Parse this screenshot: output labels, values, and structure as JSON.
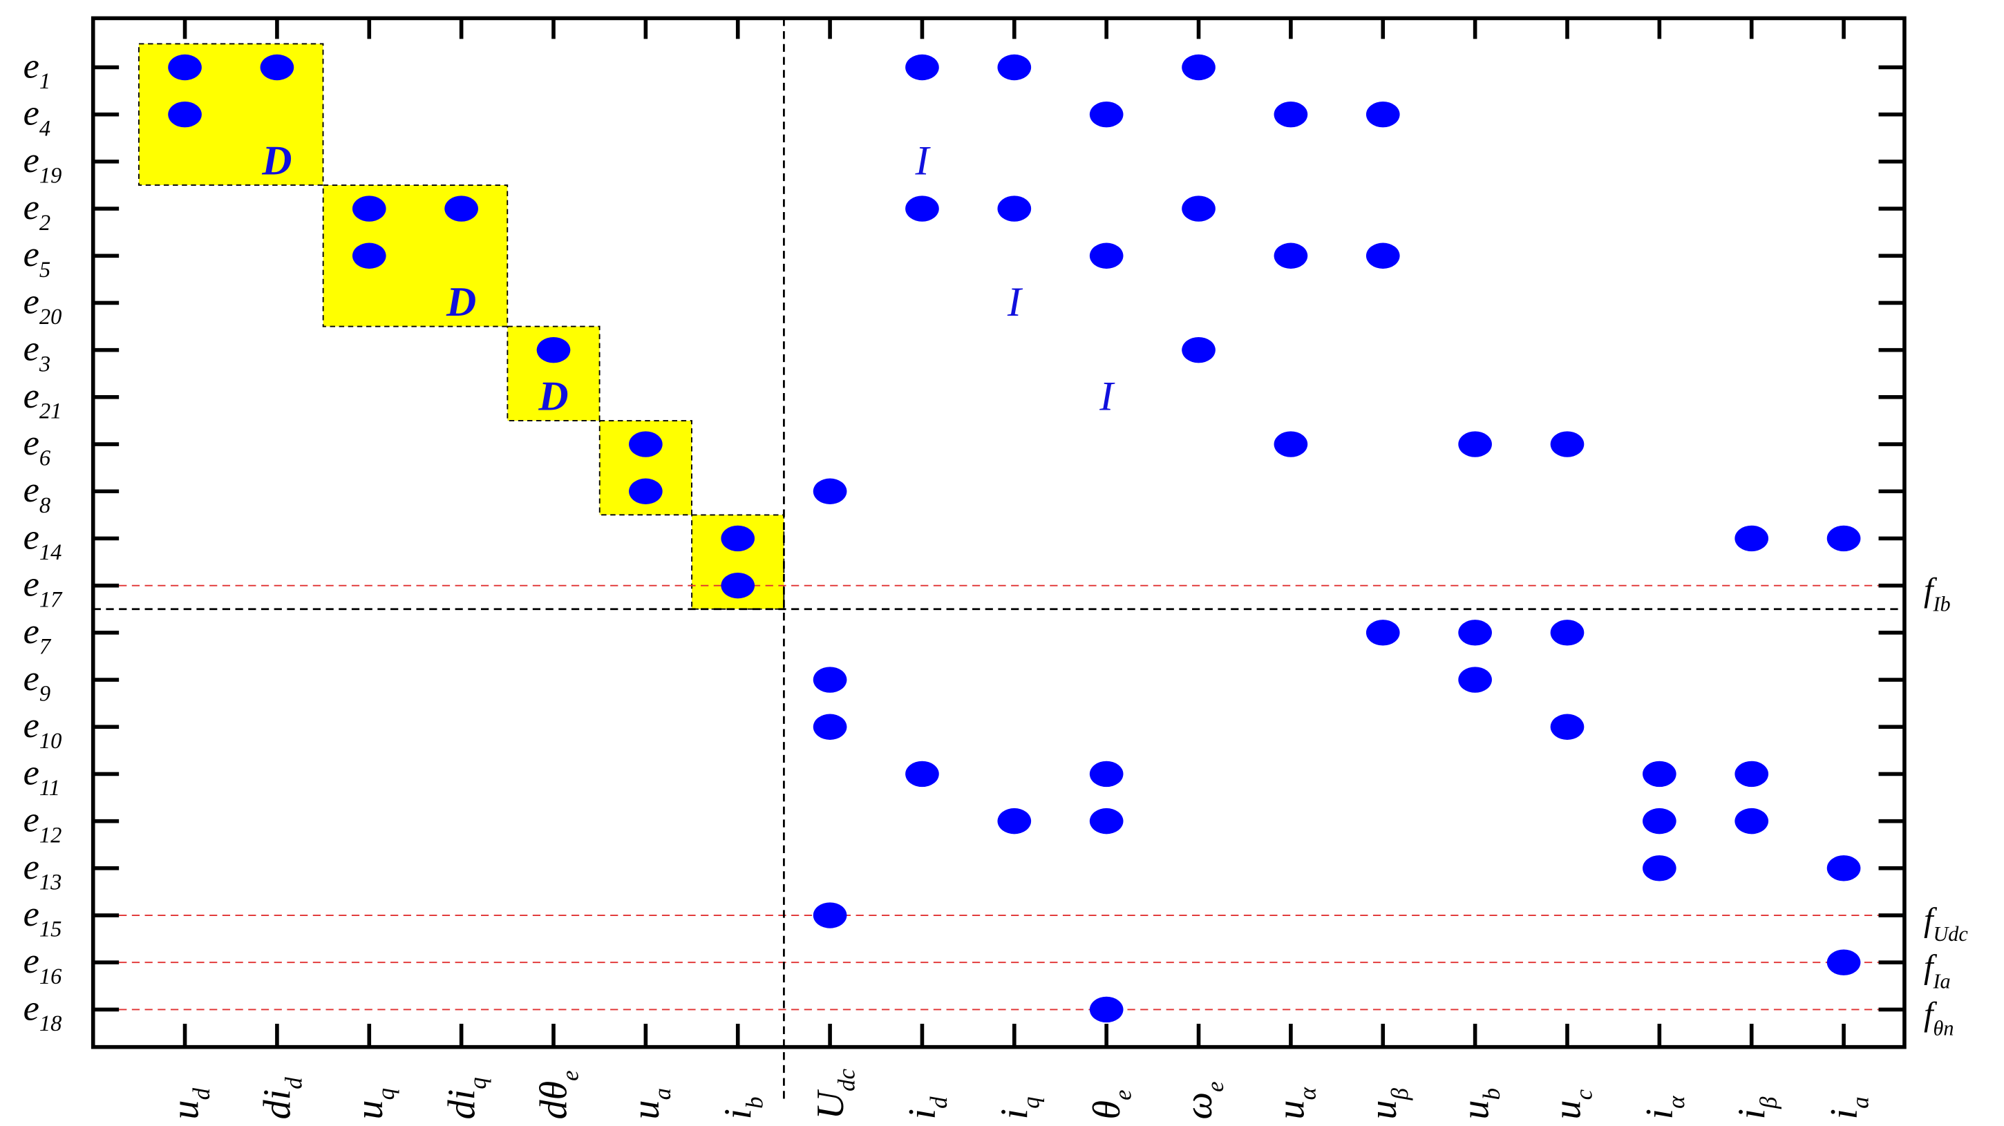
{
  "rows": [
    {
      "base": "e",
      "sub": "1"
    },
    {
      "base": "e",
      "sub": "4"
    },
    {
      "base": "e",
      "sub": "19"
    },
    {
      "base": "e",
      "sub": "2"
    },
    {
      "base": "e",
      "sub": "5"
    },
    {
      "base": "e",
      "sub": "20"
    },
    {
      "base": "e",
      "sub": "3"
    },
    {
      "base": "e",
      "sub": "21"
    },
    {
      "base": "e",
      "sub": "6"
    },
    {
      "base": "e",
      "sub": "8"
    },
    {
      "base": "e",
      "sub": "14"
    },
    {
      "base": "e",
      "sub": "17"
    },
    {
      "base": "e",
      "sub": "7"
    },
    {
      "base": "e",
      "sub": "9"
    },
    {
      "base": "e",
      "sub": "10"
    },
    {
      "base": "e",
      "sub": "11"
    },
    {
      "base": "e",
      "sub": "12"
    },
    {
      "base": "e",
      "sub": "13"
    },
    {
      "base": "e",
      "sub": "15"
    },
    {
      "base": "e",
      "sub": "16"
    },
    {
      "base": "e",
      "sub": "18"
    }
  ],
  "columns": [
    {
      "base": "u",
      "sub": "d"
    },
    {
      "base": "di",
      "sub": "d"
    },
    {
      "base": "u",
      "sub": "q"
    },
    {
      "base": "di",
      "sub": "q"
    },
    {
      "base": "dθ",
      "sub": "e"
    },
    {
      "base": "u",
      "sub": "a"
    },
    {
      "base": "i",
      "sub": "b"
    },
    {
      "base": "U",
      "sub": "dc"
    },
    {
      "base": "i",
      "sub": "d"
    },
    {
      "base": "i",
      "sub": "q"
    },
    {
      "base": "θ",
      "sub": "e"
    },
    {
      "base": "ω",
      "sub": "e"
    },
    {
      "base": "u",
      "sub": "α"
    },
    {
      "base": "u",
      "sub": "β"
    },
    {
      "base": "u",
      "sub": "b"
    },
    {
      "base": "u",
      "sub": "c"
    },
    {
      "base": "i",
      "sub": "α"
    },
    {
      "base": "i",
      "sub": "β"
    },
    {
      "base": "i",
      "sub": "a"
    }
  ],
  "cells": [
    [
      0,
      0
    ],
    [
      0,
      1
    ],
    [
      0,
      8
    ],
    [
      0,
      9
    ],
    [
      0,
      11
    ],
    [
      1,
      0
    ],
    [
      1,
      10
    ],
    [
      1,
      12
    ],
    [
      1,
      13
    ],
    [
      3,
      2
    ],
    [
      3,
      3
    ],
    [
      3,
      8
    ],
    [
      3,
      9
    ],
    [
      3,
      11
    ],
    [
      4,
      2
    ],
    [
      4,
      10
    ],
    [
      4,
      12
    ],
    [
      4,
      13
    ],
    [
      6,
      4
    ],
    [
      6,
      11
    ],
    [
      8,
      5
    ],
    [
      8,
      12
    ],
    [
      8,
      14
    ],
    [
      8,
      15
    ],
    [
      9,
      5
    ],
    [
      9,
      7
    ],
    [
      10,
      6
    ],
    [
      10,
      17
    ],
    [
      10,
      18
    ],
    [
      11,
      6
    ],
    [
      12,
      13
    ],
    [
      12,
      14
    ],
    [
      12,
      15
    ],
    [
      13,
      7
    ],
    [
      13,
      14
    ],
    [
      14,
      7
    ],
    [
      14,
      15
    ],
    [
      15,
      8
    ],
    [
      15,
      10
    ],
    [
      15,
      16
    ],
    [
      15,
      17
    ],
    [
      16,
      9
    ],
    [
      16,
      10
    ],
    [
      16,
      16
    ],
    [
      16,
      17
    ],
    [
      17,
      16
    ],
    [
      17,
      18
    ],
    [
      18,
      7
    ],
    [
      19,
      18
    ],
    [
      20,
      10
    ]
  ],
  "blocks": [
    {
      "rows": [
        0,
        2
      ],
      "cols": [
        0,
        1
      ],
      "label": "D"
    },
    {
      "rows": [
        3,
        5
      ],
      "cols": [
        2,
        3
      ],
      "label": "D"
    },
    {
      "rows": [
        6,
        7
      ],
      "cols": [
        4,
        4
      ],
      "label": "D"
    },
    {
      "rows": [
        8,
        9
      ],
      "cols": [
        5,
        5
      ]
    },
    {
      "rows": [
        10,
        11
      ],
      "cols": [
        6,
        6
      ]
    }
  ],
  "i_marks": [
    {
      "row": 2,
      "col": 8,
      "label": "I"
    },
    {
      "row": 5,
      "col": 9,
      "label": "I"
    },
    {
      "row": 7,
      "col": 10,
      "label": "I"
    }
  ],
  "faults": [
    {
      "row": 11,
      "base": "f",
      "sub": "Ib"
    },
    {
      "row": 18,
      "base": "f",
      "sub": "Udc"
    },
    {
      "row": 19,
      "base": "f",
      "sub": "Ia"
    },
    {
      "row": 20,
      "base": "f",
      "sub": "θn"
    }
  ]
}
